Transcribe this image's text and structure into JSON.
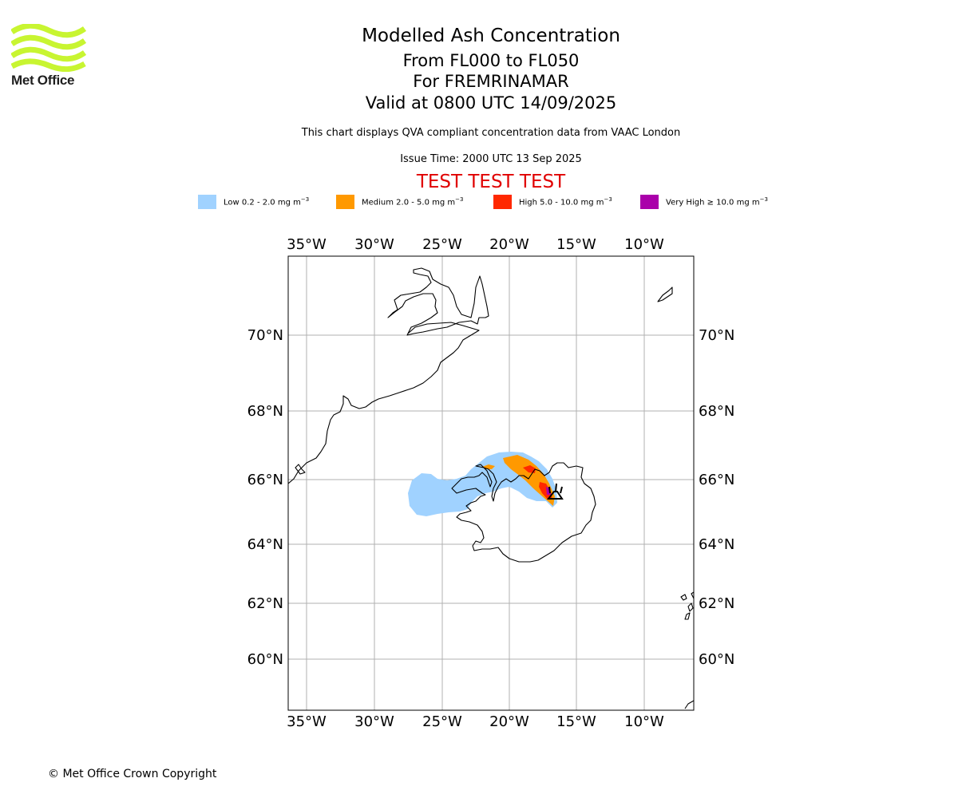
{
  "logo": {
    "text": "Met Office",
    "color": "#c8f531"
  },
  "header": {
    "title": "Modelled Ash Concentration",
    "levels": "From FL000 to FL050",
    "volcano": "For FREMRINAMAR",
    "valid": "Valid at 0800 UTC 14/09/2025",
    "disclaimer": "This chart displays QVA compliant concentration data from VAAC London",
    "issue_time": "Issue Time: 2000 UTC 13 Sep 2025",
    "test_banner": "TEST TEST TEST"
  },
  "legend": [
    {
      "label": "Low 0.2 - 2.0 mg m",
      "unit_exp": "−3",
      "color": "#a0d2ff"
    },
    {
      "label": "Medium 2.0 - 5.0 mg m",
      "unit_exp": "−3",
      "color": "#ff9900"
    },
    {
      "label": "High 5.0 - 10.0 mg m",
      "unit_exp": "−3",
      "color": "#ff2800"
    },
    {
      "label": "Very High  ≥  10.0 mg m",
      "unit_exp": "−3",
      "color": "#aa00aa"
    }
  ],
  "map": {
    "lon_labels": [
      "35°W",
      "30°W",
      "25°W",
      "20°W",
      "15°W",
      "10°W"
    ],
    "lat_labels": [
      "70°N",
      "68°N",
      "66°N",
      "64°N",
      "62°N",
      "60°N"
    ],
    "volcano_marker": "volcano-icon"
  },
  "footer": {
    "copyright": "© Met Office Crown Copyright"
  }
}
